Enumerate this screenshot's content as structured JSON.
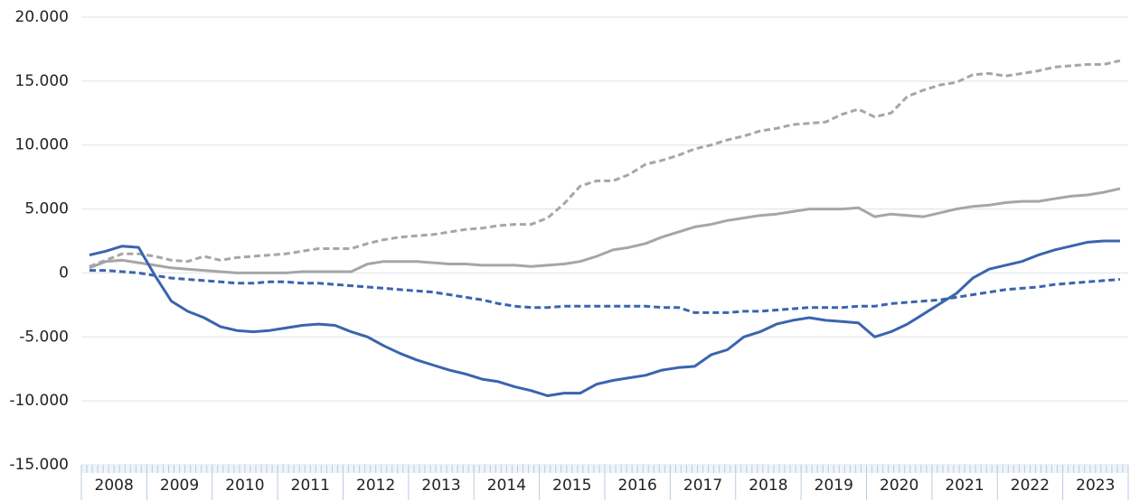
{
  "chart_data": {
    "type": "line",
    "categories": [
      "2008",
      null,
      null,
      null,
      "2009",
      null,
      null,
      null,
      "2010",
      null,
      null,
      null,
      "2011",
      null,
      null,
      null,
      "2012",
      null,
      null,
      null,
      "2013",
      null,
      null,
      null,
      "2014",
      null,
      null,
      null,
      "2015",
      null,
      null,
      null,
      "2016",
      null,
      null,
      null,
      "2017",
      null,
      null,
      null,
      "2018",
      null,
      null,
      null,
      "2019",
      null,
      null,
      null,
      "2020",
      null,
      null,
      null,
      "2021",
      null,
      null,
      null,
      "2022",
      null,
      null,
      null,
      "2023",
      null,
      null,
      null
    ],
    "series": [
      {
        "color": "#a6a6a6",
        "dash": true,
        "values": [
          500,
          1000,
          1500,
          1500,
          1300,
          1000,
          900,
          1300,
          1000,
          1200,
          1300,
          1400,
          1500,
          1700,
          1900,
          1900,
          1900,
          2300,
          2600,
          2800,
          2900,
          3000,
          3200,
          3400,
          3500,
          3700,
          3800,
          3800,
          4300,
          5400,
          6800,
          7200,
          7200,
          7700,
          8500,
          8800,
          9200,
          9700,
          10000,
          10400,
          10700,
          11100,
          11300,
          11600,
          11700,
          11800,
          12400,
          12800,
          12200,
          12500,
          13800,
          14300,
          14700,
          14900,
          15500,
          15600,
          15400,
          15600,
          15800,
          16100,
          16200,
          16300,
          16300,
          16600
        ]
      },
      {
        "color": "#a6a6a6",
        "dash": false,
        "values": [
          400,
          900,
          1000,
          800,
          600,
          400,
          300,
          200,
          100,
          0,
          0,
          0,
          0,
          100,
          100,
          100,
          100,
          700,
          900,
          900,
          900,
          800,
          700,
          700,
          600,
          600,
          600,
          500,
          600,
          700,
          900,
          1300,
          1800,
          2000,
          2300,
          2800,
          3200,
          3600,
          3800,
          4100,
          4300,
          4500,
          4600,
          4800,
          5000,
          5000,
          5000,
          5100,
          4400,
          4600,
          4500,
          4400,
          4700,
          5000,
          5200,
          5300,
          5500,
          5600,
          5600,
          5800,
          6000,
          6100,
          6300,
          6600
        ]
      },
      {
        "color": "#3a64ad",
        "dash": true,
        "values": [
          200,
          200,
          100,
          0,
          -200,
          -400,
          -500,
          -600,
          -700,
          -800,
          -800,
          -700,
          -700,
          -800,
          -800,
          -900,
          -1000,
          -1100,
          -1200,
          -1300,
          -1400,
          -1500,
          -1700,
          -1900,
          -2100,
          -2400,
          -2600,
          -2700,
          -2700,
          -2600,
          -2600,
          -2600,
          -2600,
          -2600,
          -2600,
          -2700,
          -2700,
          -3100,
          -3100,
          -3100,
          -3000,
          -3000,
          -2900,
          -2800,
          -2700,
          -2700,
          -2700,
          -2600,
          -2600,
          -2400,
          -2300,
          -2200,
          -2100,
          -1900,
          -1700,
          -1500,
          -1300,
          -1200,
          -1100,
          -900,
          -800,
          -700,
          -600,
          -500
        ]
      },
      {
        "color": "#3a64ad",
        "dash": false,
        "values": [
          1400,
          1700,
          2100,
          2000,
          -200,
          -2200,
          -3000,
          -3500,
          -4200,
          -4500,
          -4600,
          -4500,
          -4300,
          -4100,
          -4000,
          -4100,
          -4600,
          -5000,
          -5700,
          -6300,
          -6800,
          -7200,
          -7600,
          -7900,
          -8300,
          -8500,
          -8900,
          -9200,
          -9600,
          -9400,
          -9400,
          -8700,
          -8400,
          -8200,
          -8000,
          -7600,
          -7400,
          -7300,
          -6400,
          -6000,
          -5000,
          -4600,
          -4000,
          -3700,
          -3500,
          -3700,
          -3800,
          -3900,
          -5000,
          -4600,
          -4000,
          -3200,
          -2400,
          -1600,
          -400,
          300,
          600,
          900,
          1400,
          1800,
          2100,
          2400,
          2500,
          2500
        ]
      }
    ],
    "ylim": [
      -15000,
      20000
    ],
    "yticks": [
      {
        "value": -15000,
        "label": "-15.000"
      },
      {
        "value": -10000,
        "label": "-10.000"
      },
      {
        "value": -5000,
        "label": "-5.000"
      },
      0,
      {
        "value": 5000,
        "label": "5.000"
      },
      {
        "value": 10000,
        "label": "10.000"
      },
      {
        "value": 15000,
        "label": "15.000"
      },
      {
        "value": 20000,
        "label": "20.000"
      }
    ],
    "grid": true
  }
}
